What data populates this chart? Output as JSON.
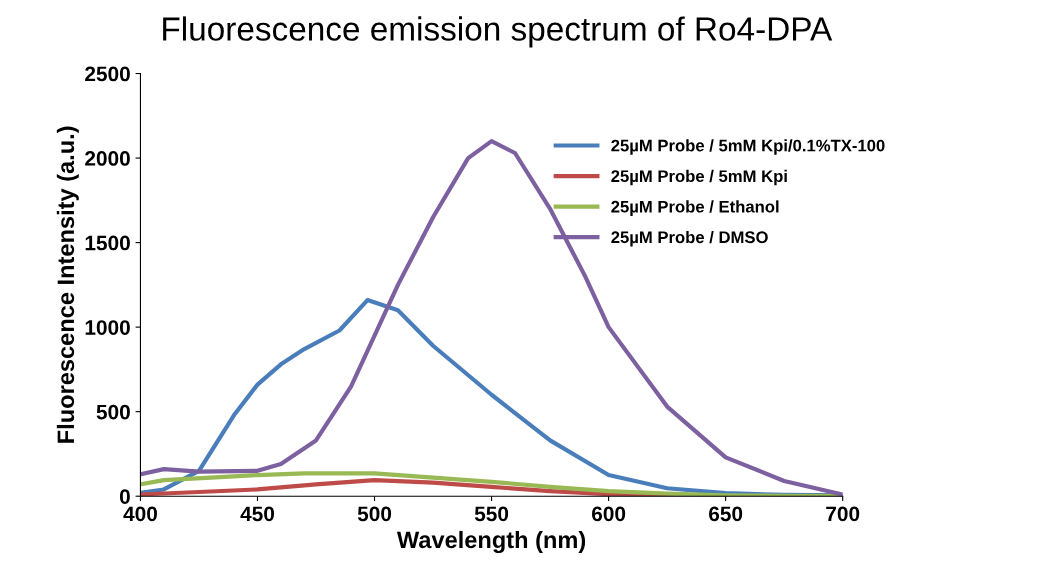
{
  "chart_data": {
    "type": "line",
    "title": "Fluorescence emission spectrum of Ro4-DPA",
    "xlabel": "Wavelength (nm)",
    "ylabel": "Fluorescence Intensity (a.u.)",
    "xlim": [
      400,
      700
    ],
    "xticks": [
      400,
      450,
      500,
      550,
      600,
      650,
      700
    ],
    "ylim": [
      0,
      2500
    ],
    "yticks": [
      0,
      500,
      1000,
      1500,
      2000,
      2500
    ],
    "grid": false,
    "legend": "right",
    "marker": "none",
    "line_style": "solid",
    "series": [
      {
        "name": "25µM Probe / 5mM Kpi/0.1%TX-100",
        "color": "#4a7ebb",
        "x": [
          400,
          410,
          425,
          440,
          450,
          460,
          470,
          485,
          497,
          510,
          525,
          550,
          575,
          600,
          625,
          650,
          675,
          700
        ],
        "values": [
          20,
          40,
          150,
          480,
          660,
          780,
          870,
          980,
          1160,
          1100,
          890,
          600,
          330,
          125,
          47,
          18,
          8,
          5
        ]
      },
      {
        "name": "25µM Probe / 5mM Kpi",
        "color": "#be4b48",
        "x": [
          400,
          425,
          450,
          475,
          500,
          525,
          550,
          575,
          600,
          625,
          650
        ],
        "values": [
          10,
          25,
          40,
          70,
          95,
          80,
          55,
          30,
          12,
          4,
          1
        ]
      },
      {
        "name": "25µM Probe / Ethanol",
        "color": "#98b954",
        "x": [
          400,
          410,
          430,
          450,
          470,
          500,
          525,
          550,
          575,
          600,
          625,
          650,
          675,
          700
        ],
        "values": [
          70,
          95,
          110,
          125,
          135,
          135,
          110,
          85,
          55,
          30,
          15,
          5,
          2,
          0
        ]
      },
      {
        "name": "25µM Probe / DMSO",
        "color": "#7d60a0",
        "x": [
          400,
          410,
          425,
          450,
          460,
          475,
          490,
          500,
          510,
          525,
          540,
          550,
          560,
          575,
          590,
          600,
          625,
          650,
          675,
          700
        ],
        "values": [
          130,
          160,
          145,
          150,
          190,
          330,
          650,
          950,
          1250,
          1650,
          2000,
          2100,
          2030,
          1700,
          1300,
          1000,
          530,
          230,
          90,
          10
        ]
      }
    ]
  }
}
